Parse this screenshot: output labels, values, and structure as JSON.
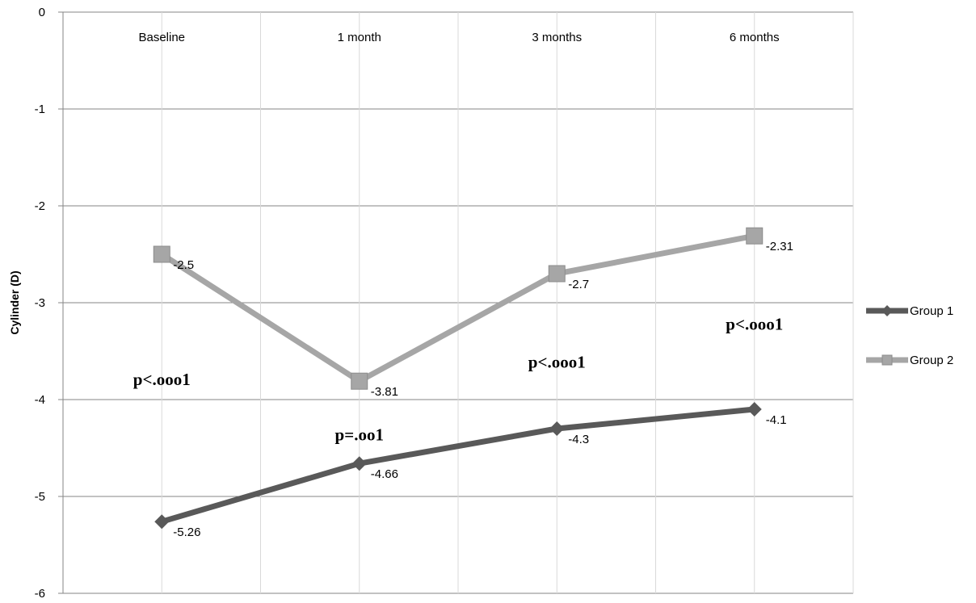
{
  "chart_data": {
    "type": "line",
    "categories": [
      "Baseline",
      "1 month",
      "3 months",
      "6 months"
    ],
    "ylabel": "Cylinder (D)",
    "ylim": [
      -6,
      0
    ],
    "yticks": [
      0,
      -1,
      -2,
      -3,
      -4,
      -5,
      -6
    ],
    "grid": true,
    "legend": "right",
    "series": [
      {
        "name": "Group 1",
        "values": [
          -5.26,
          -4.66,
          -4.3,
          -4.1
        ],
        "labels": [
          "-5.26",
          "-4.66",
          "-4.3",
          "-4.1"
        ],
        "color": "#595959",
        "marker": "diamond"
      },
      {
        "name": "Group 2",
        "values": [
          -2.5,
          -3.81,
          -2.7,
          -2.31
        ],
        "labels": [
          "-2.5",
          "-3.81",
          "-2.7",
          "-2.31"
        ],
        "color": "#a6a6a6",
        "marker": "square"
      }
    ],
    "annotations": [
      {
        "text": "p<.ooo1",
        "x": "Baseline",
        "y": -3.85
      },
      {
        "text": "p=.oo1",
        "x": "1 month",
        "y": -4.42
      },
      {
        "text": "p<.ooo1",
        "x": "3 months",
        "y": -3.67
      },
      {
        "text": "p<.ooo1",
        "x": "6 months",
        "y": -3.28
      }
    ]
  }
}
